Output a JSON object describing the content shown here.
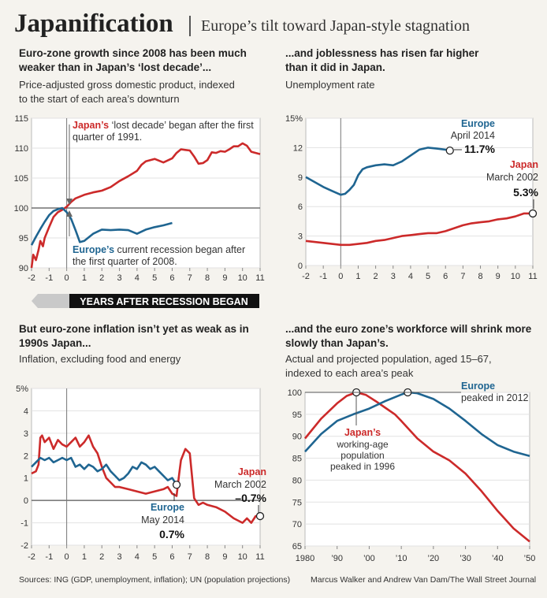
{
  "header": {
    "title": "Japanification",
    "subtitle": "Europe’s tilt toward Japan-style stagnation"
  },
  "panels": {
    "gdp": {
      "title_l1": "Euro-zone growth since 2008 has been much",
      "title_l2": "weaker than in Japan’s ‘lost decade’...",
      "subtitle_l1": "Price-adjusted gross domestic product, indexed",
      "subtitle_l2": "to the start of each area’s downturn",
      "japan_label": "Japan’s",
      "japan_note_l1": "‘lost decade’ began after the first",
      "japan_note_l2": "quarter of 1991.",
      "europe_label": "Europe’s",
      "europe_note_l1": "current recession began after",
      "europe_note_l2": "the first quarter of 2008."
    },
    "unemp": {
      "title_l1": "...and joblessness has risen far higher",
      "title_l2": "than it did in Japan.",
      "subtitle": "Unemployment rate",
      "europe_label": "Europe",
      "europe_date": "April 2014",
      "europe_value": "11.7%",
      "japan_label": "Japan",
      "japan_date": "March 2002",
      "japan_value": "5.3%"
    },
    "infl": {
      "title_l1": "But euro-zone inflation isn’t yet as weak as in",
      "title_l2": "1990s Japan...",
      "subtitle": "Inflation, excluding food and energy",
      "japan_label": "Japan",
      "japan_date": "March 2002",
      "japan_value": "–0.7%",
      "europe_label": "Europe",
      "europe_date": "May 2014",
      "europe_value": "0.7%"
    },
    "pop": {
      "title_l1": "...and the euro zone’s workforce will shrink more",
      "title_l2": "slowly than Japan’s.",
      "subtitle_l1": "Actual and projected population, aged 15–67,",
      "subtitle_l2": "indexed to each area’s peak",
      "europe_label": "Europe",
      "europe_note": "peaked in 2012",
      "japan_label": "Japan’s",
      "japan_note_l1": "working-age",
      "japan_note_l2": "population",
      "japan_note_l3": "peaked in 1996"
    }
  },
  "axis_banner": "YEARS AFTER RECESSION BEGAN",
  "footer": {
    "sources": "Sources: ING (GDP, unemployment, inflation); UN (population projections)",
    "credit": "Marcus Walker and Andrew Van Dam/The Wall Street Journal"
  },
  "colors": {
    "japan": "#cc2a2a",
    "europe": "#1f6591"
  },
  "chart_data": [
    {
      "type": "line",
      "title": "Price-adjusted gross domestic product, indexed to the start of each area’s downturn",
      "xlabel": "Years after recession began",
      "xlim": [
        -2,
        11
      ],
      "ylim": [
        90,
        115
      ],
      "xticks": [
        "-2",
        "-1",
        "0",
        "1",
        "2",
        "3",
        "4",
        "5",
        "6",
        "7",
        "8",
        "9",
        "10",
        "11"
      ],
      "yticks": [
        "90",
        "95",
        "100",
        "105",
        "110",
        "115"
      ],
      "series": [
        {
          "name": "Japan",
          "x": [
            -2,
            -1.9,
            -1.75,
            -1.6,
            -1.5,
            -1.35,
            -1.25,
            -1,
            -0.75,
            -0.5,
            -0.25,
            0,
            0.25,
            0.5,
            1,
            1.5,
            2,
            2.5,
            3,
            3.5,
            4,
            4.25,
            4.5,
            5,
            5.5,
            6,
            6.25,
            6.5,
            6.75,
            7,
            7.25,
            7.5,
            7.75,
            8,
            8.25,
            8.5,
            8.75,
            9,
            9.25,
            9.5,
            9.75,
            10,
            10.25,
            10.5,
            10.75,
            11
          ],
          "values": [
            90,
            92.2,
            91.3,
            93,
            94.5,
            93.6,
            95,
            96.8,
            98.5,
            99.3,
            99.7,
            100.2,
            101,
            101.6,
            102.2,
            102.6,
            102.9,
            103.5,
            104.5,
            105.3,
            106.2,
            107.2,
            107.8,
            108.2,
            107.6,
            108.3,
            109.2,
            109.8,
            109.7,
            109.6,
            108.6,
            107.4,
            107.5,
            108,
            109.3,
            109.2,
            109.5,
            109.4,
            109.8,
            110.3,
            110.3,
            110.8,
            110.4,
            109.4,
            109.2,
            109
          ]
        },
        {
          "name": "Europe",
          "x": [
            -2,
            -1.75,
            -1.5,
            -1.25,
            -1,
            -0.75,
            -0.5,
            -0.25,
            0,
            0.25,
            0.5,
            0.75,
            1,
            1.5,
            2,
            2.5,
            3,
            3.5,
            4,
            4.5,
            5,
            5.5,
            6
          ],
          "values": [
            93.8,
            95.2,
            96.5,
            97.7,
            98.8,
            99.5,
            99.8,
            100,
            99.3,
            98.2,
            96.3,
            94.3,
            94.5,
            95.7,
            96.4,
            96.3,
            96.4,
            96.3,
            95.7,
            96.4,
            96.8,
            97.1,
            97.5
          ]
        }
      ]
    },
    {
      "type": "line",
      "title": "Unemployment rate",
      "xlim": [
        -2,
        11
      ],
      "ylim": [
        0,
        15
      ],
      "xticks": [
        "-2",
        "-1",
        "0",
        "1",
        "2",
        "3",
        "4",
        "5",
        "6",
        "7",
        "8",
        "9",
        "10",
        "11"
      ],
      "yticks": [
        "0",
        "3",
        "6",
        "9",
        "12",
        "15%"
      ],
      "series": [
        {
          "name": "Europe",
          "x": [
            -2,
            -1.5,
            -1,
            -0.5,
            0,
            0.25,
            0.5,
            0.75,
            1,
            1.25,
            1.5,
            2,
            2.5,
            3,
            3.5,
            4,
            4.5,
            5,
            5.5,
            6,
            6.25
          ],
          "values": [
            9,
            8.5,
            8,
            7.6,
            7.2,
            7.3,
            7.7,
            8.2,
            9.2,
            9.8,
            10,
            10.2,
            10.3,
            10.2,
            10.6,
            11.2,
            11.8,
            12,
            11.9,
            11.8,
            11.7
          ]
        },
        {
          "name": "Japan",
          "x": [
            -2,
            -1.5,
            -1,
            -0.5,
            0,
            0.5,
            1,
            1.5,
            2,
            2.5,
            3,
            3.5,
            4,
            4.5,
            5,
            5.5,
            6,
            6.5,
            7,
            7.5,
            8,
            8.5,
            9,
            9.5,
            10,
            10.5,
            11
          ],
          "values": [
            2.5,
            2.4,
            2.3,
            2.2,
            2.1,
            2.1,
            2.2,
            2.3,
            2.5,
            2.6,
            2.8,
            3.0,
            3.1,
            3.2,
            3.3,
            3.3,
            3.5,
            3.8,
            4.1,
            4.3,
            4.4,
            4.5,
            4.7,
            4.8,
            5.0,
            5.3,
            5.3
          ]
        }
      ]
    },
    {
      "type": "line",
      "title": "Inflation, excluding food and energy",
      "xlim": [
        -2,
        11
      ],
      "ylim": [
        -2,
        5
      ],
      "xticks": [
        "-2",
        "-1",
        "0",
        "1",
        "2",
        "3",
        "4",
        "5",
        "6",
        "7",
        "8",
        "9",
        "10",
        "11"
      ],
      "yticks": [
        "-2",
        "-1",
        "0",
        "1",
        "2",
        "3",
        "4",
        "5%"
      ],
      "series": [
        {
          "name": "Japan",
          "x": [
            -2,
            -1.75,
            -1.6,
            -1.5,
            -1.4,
            -1.25,
            -1,
            -0.75,
            -0.5,
            -0.25,
            0,
            0.25,
            0.5,
            0.75,
            1,
            1.25,
            1.5,
            1.75,
            2,
            2.25,
            2.5,
            2.75,
            3,
            3.5,
            4,
            4.5,
            5,
            5.5,
            5.75,
            6,
            6.25,
            6.4,
            6.5,
            6.75,
            7,
            7.25,
            7.5,
            7.75,
            8,
            8.5,
            9,
            9.5,
            10,
            10.25,
            10.5,
            10.75,
            11
          ],
          "values": [
            1.2,
            1.3,
            1.6,
            2.8,
            2.9,
            2.6,
            2.8,
            2.3,
            2.7,
            2.5,
            2.4,
            2.6,
            2.8,
            2.4,
            2.6,
            2.9,
            2.4,
            2.1,
            1.5,
            1.0,
            0.8,
            0.6,
            0.6,
            0.5,
            0.4,
            0.3,
            0.4,
            0.5,
            0.6,
            0.3,
            0.2,
            1.2,
            1.8,
            2.3,
            2.1,
            0.1,
            -0.2,
            -0.1,
            -0.2,
            -0.3,
            -0.5,
            -0.8,
            -1.0,
            -0.8,
            -1.0,
            -0.7,
            -0.7
          ]
        },
        {
          "name": "Europe",
          "x": [
            -2,
            -1.75,
            -1.5,
            -1.25,
            -1,
            -0.75,
            -0.5,
            -0.25,
            0,
            0.25,
            0.5,
            0.75,
            1,
            1.25,
            1.5,
            1.75,
            2,
            2.25,
            2.5,
            2.75,
            3,
            3.25,
            3.5,
            3.75,
            4,
            4.25,
            4.5,
            4.75,
            5,
            5.25,
            5.5,
            5.75,
            6,
            6.25
          ],
          "values": [
            1.5,
            1.7,
            1.9,
            1.8,
            1.9,
            1.7,
            1.8,
            1.9,
            1.8,
            1.9,
            1.5,
            1.6,
            1.4,
            1.6,
            1.5,
            1.3,
            1.4,
            1.6,
            1.3,
            1.1,
            0.9,
            1.0,
            1.2,
            1.5,
            1.4,
            1.7,
            1.6,
            1.4,
            1.5,
            1.3,
            1.1,
            0.9,
            1.0,
            0.7
          ]
        }
      ]
    },
    {
      "type": "line",
      "title": "Actual and projected population, aged 15–67, indexed to each area’s peak",
      "xlim": [
        1980,
        2050
      ],
      "ylim": [
        65,
        100
      ],
      "xticks": [
        "1980",
        "’90",
        "’00",
        "’10",
        "’20",
        "’30",
        "’40",
        "’50"
      ],
      "yticks": [
        "65",
        "70",
        "75",
        "80",
        "85",
        "90",
        "95",
        "100"
      ],
      "series": [
        {
          "name": "Japan",
          "x": [
            1980,
            1985,
            1990,
            1993,
            1996,
            1999,
            2002,
            2005,
            2008,
            2010,
            2015,
            2020,
            2025,
            2030,
            2035,
            2040,
            2045,
            2050
          ],
          "values": [
            89.5,
            94,
            97.5,
            99.2,
            100,
            99.4,
            98,
            96.5,
            95,
            93.5,
            89.5,
            86.5,
            84.5,
            81.5,
            77.5,
            73,
            69,
            66
          ]
        },
        {
          "name": "Europe",
          "x": [
            1980,
            1985,
            1990,
            1995,
            2000,
            2005,
            2010,
            2012,
            2015,
            2020,
            2025,
            2030,
            2035,
            2040,
            2045,
            2050
          ],
          "values": [
            86.5,
            90.5,
            93.5,
            95,
            96.3,
            98,
            99.5,
            100,
            99.8,
            98.5,
            96.3,
            93.5,
            90.5,
            88,
            86.5,
            85.5
          ]
        }
      ]
    }
  ]
}
